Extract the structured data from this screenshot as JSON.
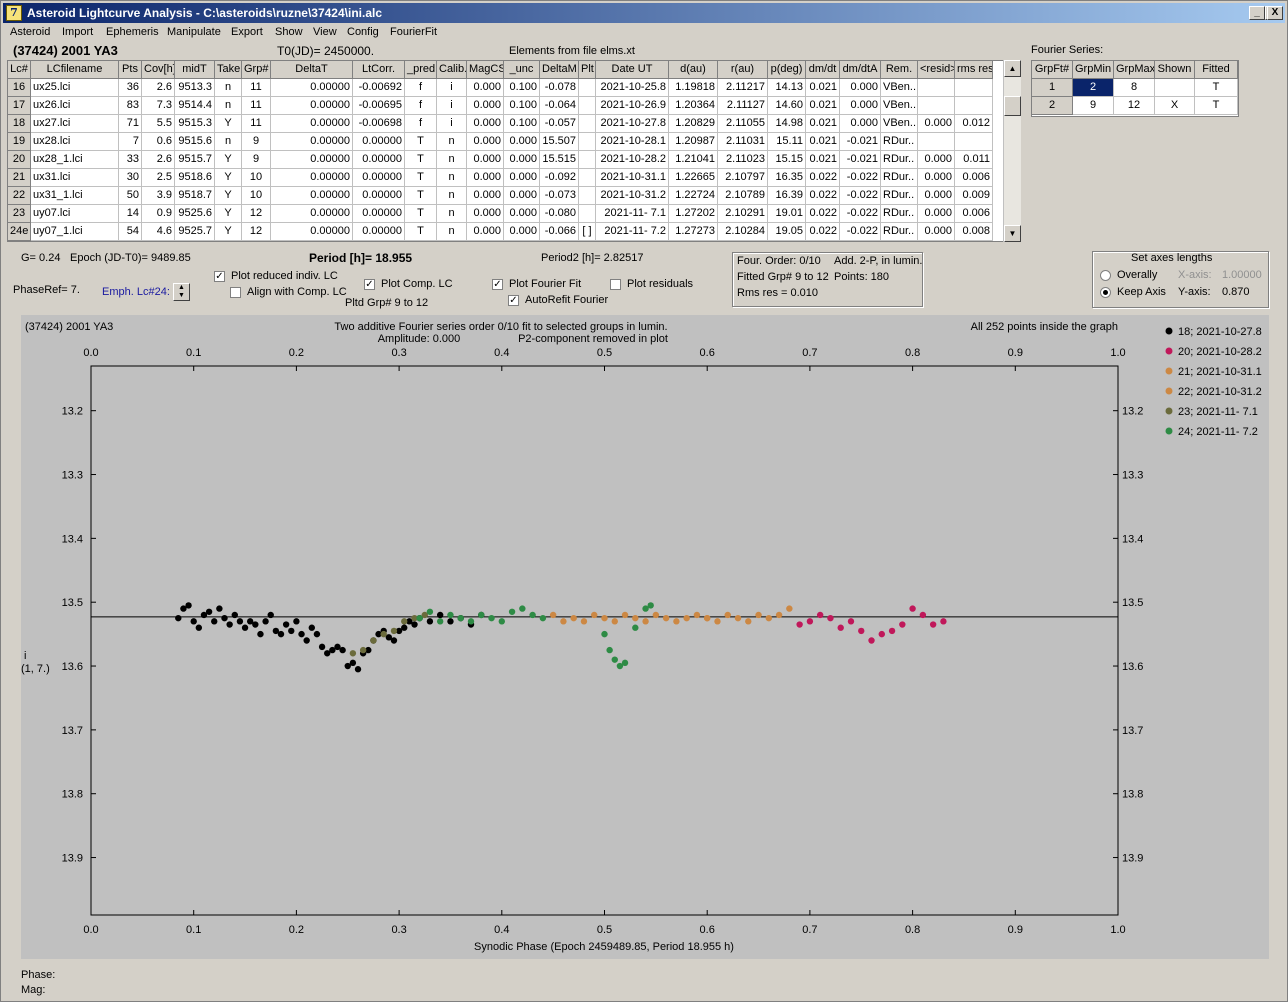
{
  "window": {
    "title": "Asteroid Lightcurve Analysis - C:\\asteroids\\ruzne\\37424\\ini.alc",
    "controls": [
      "_",
      "□",
      "X"
    ]
  },
  "menu": [
    "Asteroid",
    "Import",
    "Ephemeris",
    "Manipulate",
    "Export",
    "Show",
    "View",
    "Config",
    "FourierFit"
  ],
  "header": {
    "asteroid": "(37424) 2001 YA3",
    "t0": "T0(JD)= 2450000.",
    "elements": "Elements from file elms.xt",
    "fourier_label": "Fourier Series:"
  },
  "lc_table": {
    "columns": [
      "Lc#",
      "LCfilename",
      "Pts",
      "Cov[h]",
      "midT",
      "Take",
      "Grp#",
      "DeltaT",
      "LtCorr.",
      "_pred.",
      "Calib.",
      "MagCS",
      "_unc",
      "DeltaM",
      "Plt",
      "Date UT",
      "d(au)",
      "r(au)",
      "p(deg)",
      "dm/dt",
      "dm/dtA",
      "Rem.",
      "<resid>",
      "rms res"
    ],
    "rows": [
      [
        "16",
        "ux25.lci",
        "36",
        "2.6",
        "9513.3",
        "n",
        "11",
        "0.00000",
        "-0.00692",
        "f",
        "i",
        "0.000",
        "0.100",
        "-0.078",
        "",
        "2021-10-25.8",
        "1.19818",
        "2.11217",
        "14.13",
        "0.021",
        "0.000",
        "VBen..",
        "",
        ""
      ],
      [
        "17",
        "ux26.lci",
        "83",
        "7.3",
        "9514.4",
        "n",
        "11",
        "0.00000",
        "-0.00695",
        "f",
        "i",
        "0.000",
        "0.100",
        "-0.064",
        "",
        "2021-10-26.9",
        "1.20364",
        "2.11127",
        "14.60",
        "0.021",
        "0.000",
        "VBen..",
        "",
        ""
      ],
      [
        "18",
        "ux27.lci",
        "71",
        "5.5",
        "9515.3",
        "Y",
        "11",
        "0.00000",
        "-0.00698",
        "f",
        "i",
        "0.000",
        "0.100",
        "-0.057",
        "",
        "2021-10-27.8",
        "1.20829",
        "2.11055",
        "14.98",
        "0.021",
        "0.000",
        "VBen..",
        "0.000",
        "0.012"
      ],
      [
        "19",
        "ux28.lci",
        "7",
        "0.6",
        "9515.6",
        "n",
        "9",
        "0.00000",
        "0.00000",
        "T",
        "n",
        "0.000",
        "0.000",
        "15.507",
        "",
        "2021-10-28.1",
        "1.20987",
        "2.11031",
        "15.11",
        "0.021",
        "-0.021",
        "RDur..",
        "",
        ""
      ],
      [
        "20",
        "ux28_1.lci",
        "33",
        "2.6",
        "9515.7",
        "Y",
        "9",
        "0.00000",
        "0.00000",
        "T",
        "n",
        "0.000",
        "0.000",
        "15.515",
        "",
        "2021-10-28.2",
        "1.21041",
        "2.11023",
        "15.15",
        "0.021",
        "-0.021",
        "RDur..",
        "0.000",
        "0.011"
      ],
      [
        "21",
        "ux31.lci",
        "30",
        "2.5",
        "9518.6",
        "Y",
        "10",
        "0.00000",
        "0.00000",
        "T",
        "n",
        "0.000",
        "0.000",
        "-0.092",
        "",
        "2021-10-31.1",
        "1.22665",
        "2.10797",
        "16.35",
        "0.022",
        "-0.022",
        "RDur..",
        "0.000",
        "0.006"
      ],
      [
        "22",
        "ux31_1.lci",
        "50",
        "3.9",
        "9518.7",
        "Y",
        "10",
        "0.00000",
        "0.00000",
        "T",
        "n",
        "0.000",
        "0.000",
        "-0.073",
        "",
        "2021-10-31.2",
        "1.22724",
        "2.10789",
        "16.39",
        "0.022",
        "-0.022",
        "RDur..",
        "0.000",
        "0.009"
      ],
      [
        "23",
        "uy07.lci",
        "14",
        "0.9",
        "9525.6",
        "Y",
        "12",
        "0.00000",
        "0.00000",
        "T",
        "n",
        "0.000",
        "0.000",
        "-0.080",
        "",
        "2021-11- 7.1",
        "1.27202",
        "2.10291",
        "19.01",
        "0.022",
        "-0.022",
        "RDur..",
        "0.000",
        "0.006"
      ],
      [
        "24e",
        "uy07_1.lci",
        "54",
        "4.6",
        "9525.7",
        "Y",
        "12",
        "0.00000",
        "0.00000",
        "T",
        "n",
        "0.000",
        "0.000",
        "-0.066",
        "[ ]",
        "2021-11- 7.2",
        "1.27273",
        "2.10284",
        "19.05",
        "0.022",
        "-0.022",
        "RDur..",
        "0.000",
        "0.008"
      ]
    ]
  },
  "fourier_table": {
    "columns": [
      "GrpFt#",
      "GrpMin",
      "GrpMax",
      "Shown",
      "Fitted"
    ],
    "rows": [
      [
        "1",
        "2",
        "8",
        "",
        "T"
      ],
      [
        "2",
        "9",
        "12",
        "X",
        "T"
      ]
    ]
  },
  "controls": {
    "g": "G= 0.24",
    "epoch": "Epoch (JD-T0)= 9489.85",
    "period": "Period [h]= 18.955",
    "period2": "Period2 [h]= 2.82517",
    "phaseref": "PhaseRef= 7.",
    "emph": "Emph. Lc#24:",
    "plot_reduced": "Plot reduced indiv. LC",
    "align_comp": "Align with Comp. LC",
    "plot_comp": "Plot Comp. LC",
    "pltd_grp": "Pltd Grp#  9  to  12",
    "plot_fourier": "Plot Fourier Fit",
    "autorefit": "AutoRefit Fourier",
    "plot_residuals": "Plot residuals",
    "four_order": "Four. Order:  0/10",
    "add2p": "Add. 2-P, in lumin.",
    "fitted_grp": "Fitted Grp# 9 to 12",
    "points": "Points: 180",
    "rms": "Rms res     = 0.010",
    "axes_title": "Set axes lengths",
    "overally": "Overally",
    "keep_axis": "Keep Axis",
    "xaxis_label": "X-axis:",
    "xaxis_val": "1.00000",
    "yaxis_label": "Y-axis:",
    "yaxis_val": "0.870",
    "check_reduced": true,
    "check_align": false,
    "check_comp": true,
    "check_fourier": true,
    "check_autorefit": true,
    "check_residuals": false
  },
  "chart_data": {
    "type": "scatter",
    "title": "(37424) 2001 YA3",
    "subtitle_1": "Two additive Fourier series order 0/10 fit to selected groups in lumin.",
    "subtitle_2": "Amplitude: 0.000",
    "subtitle_3": "P2-component removed in plot",
    "note": "All 252 points inside the graph",
    "xlabel": "Synodic Phase (Epoch 2459489.85, Period 18.955 h)",
    "ylabel_1": "i",
    "ylabel_2": "(1, 7.)",
    "xlim": [
      0.0,
      1.0
    ],
    "ylim": [
      13.13,
      13.99
    ],
    "y_inverted": true,
    "xticks": [
      "0.0",
      "0.1",
      "0.2",
      "0.3",
      "0.4",
      "0.5",
      "0.6",
      "0.7",
      "0.8",
      "0.9",
      "1.0"
    ],
    "yticks": [
      "13.2",
      "13.3",
      "13.4",
      "13.5",
      "13.6",
      "13.7",
      "13.8",
      "13.9"
    ],
    "fit_line": 13.523,
    "legend_position": "right",
    "series": [
      {
        "name": "18; 2021-10-27.8",
        "color": "#000000",
        "x": [
          0.085,
          0.09,
          0.095,
          0.1,
          0.105,
          0.11,
          0.115,
          0.12,
          0.125,
          0.13,
          0.135,
          0.14,
          0.145,
          0.15,
          0.155,
          0.16,
          0.165,
          0.17,
          0.175,
          0.18,
          0.185,
          0.19,
          0.195,
          0.2,
          0.205,
          0.21,
          0.215,
          0.22,
          0.225,
          0.23,
          0.235,
          0.24,
          0.245,
          0.25,
          0.255,
          0.26,
          0.265,
          0.27,
          0.275,
          0.28,
          0.285,
          0.29,
          0.295,
          0.3,
          0.305,
          0.31,
          0.315,
          0.32,
          0.33,
          0.34,
          0.35,
          0.36,
          0.37,
          0.38
        ],
        "y": [
          13.525,
          13.51,
          13.505,
          13.53,
          13.54,
          13.52,
          13.515,
          13.53,
          13.51,
          13.525,
          13.535,
          13.52,
          13.53,
          13.54,
          13.53,
          13.535,
          13.55,
          13.53,
          13.52,
          13.545,
          13.55,
          13.535,
          13.545,
          13.53,
          13.55,
          13.56,
          13.54,
          13.55,
          13.57,
          13.58,
          13.575,
          13.57,
          13.575,
          13.6,
          13.595,
          13.605,
          13.58,
          13.575,
          13.56,
          13.55,
          13.545,
          13.555,
          13.56,
          13.545,
          13.54,
          13.53,
          13.535,
          13.525,
          13.53,
          13.52,
          13.53,
          13.525,
          13.535,
          13.52
        ]
      },
      {
        "name": "20; 2021-10-28.2",
        "color": "#c0185a",
        "x": [
          0.69,
          0.7,
          0.71,
          0.72,
          0.73,
          0.74,
          0.75,
          0.76,
          0.77,
          0.78,
          0.79,
          0.8,
          0.81,
          0.82,
          0.83
        ],
        "y": [
          13.535,
          13.53,
          13.52,
          13.525,
          13.54,
          13.53,
          13.545,
          13.56,
          13.55,
          13.545,
          13.535,
          13.51,
          13.52,
          13.535,
          13.53
        ]
      },
      {
        "name": "21; 2021-10-31.1",
        "color": "#cc8844",
        "x": [
          0.45,
          0.46,
          0.47,
          0.48,
          0.49,
          0.5,
          0.51,
          0.52,
          0.53,
          0.54,
          0.55,
          0.56,
          0.57,
          0.58,
          0.59,
          0.6
        ],
        "y": [
          13.52,
          13.53,
          13.525,
          13.53,
          13.52,
          13.525,
          13.53,
          13.52,
          13.525,
          13.53,
          13.52,
          13.525,
          13.53,
          13.525,
          13.52,
          13.525
        ]
      },
      {
        "name": "22; 2021-10-31.2",
        "color": "#cc8844",
        "x": [
          0.6,
          0.61,
          0.62,
          0.63,
          0.64,
          0.65,
          0.66,
          0.67,
          0.68
        ],
        "y": [
          13.525,
          13.53,
          13.52,
          13.525,
          13.53,
          13.52,
          13.525,
          13.52,
          13.51
        ]
      },
      {
        "name": "23; 2021-11- 7.1",
        "color": "#6b6b3c",
        "x": [
          0.255,
          0.265,
          0.275,
          0.285,
          0.295,
          0.305,
          0.315,
          0.325
        ],
        "y": [
          13.58,
          13.575,
          13.56,
          13.55,
          13.545,
          13.53,
          13.525,
          13.52
        ]
      },
      {
        "name": "24; 2021-11- 7.2",
        "color": "#2e8b45",
        "x": [
          0.32,
          0.33,
          0.34,
          0.35,
          0.36,
          0.37,
          0.38,
          0.39,
          0.4,
          0.41,
          0.42,
          0.43,
          0.44,
          0.5,
          0.505,
          0.51,
          0.515,
          0.52,
          0.53,
          0.54,
          0.545
        ],
        "y": [
          13.525,
          13.515,
          13.53,
          13.52,
          13.525,
          13.53,
          13.52,
          13.525,
          13.53,
          13.515,
          13.51,
          13.52,
          13.525,
          13.55,
          13.575,
          13.59,
          13.6,
          13.595,
          13.54,
          13.51,
          13.505
        ]
      }
    ]
  },
  "status": {
    "phase": "Phase:",
    "mag": "Mag:"
  }
}
